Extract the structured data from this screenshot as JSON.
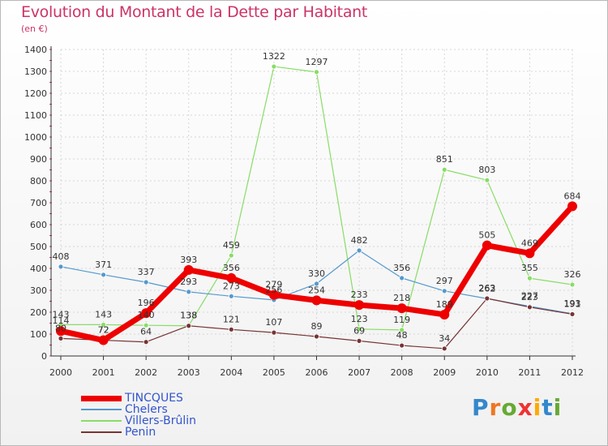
{
  "chart_data": {
    "type": "line",
    "title": "Evolution du Montant de la Dette par Habitant",
    "subtitle": "(en €)",
    "ylim": [
      0,
      1400
    ],
    "yticks": [
      0,
      100,
      200,
      300,
      400,
      500,
      600,
      700,
      800,
      900,
      1000,
      1100,
      1200,
      1300,
      1400
    ],
    "categories": [
      "2000",
      "2001",
      "2002",
      "2003",
      "2004",
      "2005",
      "2006",
      "2007",
      "2008",
      "2009",
      "2010",
      "2011",
      "2012"
    ],
    "grid": true,
    "legend": "bottom-left",
    "series": [
      {
        "name": "TINCQUES",
        "color": "#ee0000",
        "values": [
          114,
          72,
          196,
          393,
          356,
          279,
          254,
          233,
          218,
          189,
          505,
          469,
          684
        ]
      },
      {
        "name": "Chelers",
        "color": "#5599cc",
        "values": [
          408,
          371,
          337,
          293,
          273,
          256,
          330,
          482,
          356,
          297,
          262,
          227,
          193
        ]
      },
      {
        "name": "Villers-Brûlin",
        "color": "#88dd66",
        "values": [
          143,
          143,
          140,
          138,
          459,
          1322,
          1297,
          123,
          119,
          851,
          803,
          355,
          326
        ]
      },
      {
        "name": "Penin",
        "color": "#773333",
        "values": [
          80,
          72,
          64,
          138,
          121,
          107,
          89,
          69,
          48,
          34,
          263,
          223,
          191
        ]
      }
    ]
  },
  "logo": {
    "letters": [
      "P",
      "r",
      "o",
      "x",
      "i",
      "t",
      "i"
    ],
    "colors": [
      "#3388cc",
      "#ee7722",
      "#66aa33",
      "#ee3333",
      "#ffaa00",
      "#3388cc",
      "#66aa33"
    ]
  }
}
